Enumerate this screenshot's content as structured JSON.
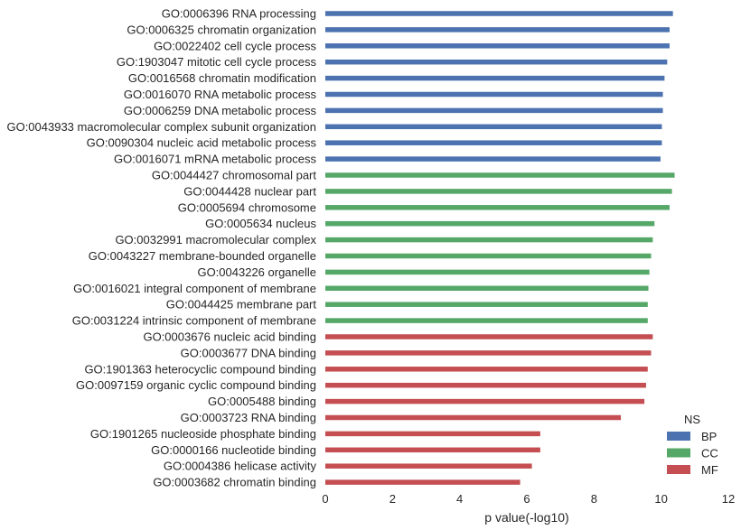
{
  "chart_data": {
    "type": "bar",
    "orientation": "horizontal",
    "xlabel": "p value(-log10)",
    "ylabel": "",
    "xlim": [
      0,
      12
    ],
    "xticks": [
      0,
      2,
      4,
      6,
      8,
      10,
      12
    ],
    "grid": false,
    "legend": {
      "title": "NS",
      "placement": "bottom-right",
      "entries": [
        {
          "name": "BP",
          "color": "#4c72b0"
        },
        {
          "name": "CC",
          "color": "#55a868"
        },
        {
          "name": "MF",
          "color": "#c44e52"
        }
      ]
    },
    "bars": [
      {
        "label": "GO:0006396 RNA processing",
        "value": 10.35,
        "ns": "BP"
      },
      {
        "label": "GO:0006325 chromatin organization",
        "value": 10.25,
        "ns": "BP"
      },
      {
        "label": "GO:0022402 cell cycle process",
        "value": 10.25,
        "ns": "BP"
      },
      {
        "label": "GO:1903047 mitotic cell cycle process",
        "value": 10.18,
        "ns": "BP"
      },
      {
        "label": "GO:0016568 chromatin modification",
        "value": 10.1,
        "ns": "BP"
      },
      {
        "label": "GO:0016070 RNA metabolic process",
        "value": 10.05,
        "ns": "BP"
      },
      {
        "label": "GO:0006259 DNA metabolic process",
        "value": 10.05,
        "ns": "BP"
      },
      {
        "label": "GO:0043933 macromolecular complex subunit organization",
        "value": 10.02,
        "ns": "BP"
      },
      {
        "label": "GO:0090304 nucleic acid metabolic process",
        "value": 10.02,
        "ns": "BP"
      },
      {
        "label": "GO:0016071 mRNA metabolic process",
        "value": 9.98,
        "ns": "BP"
      },
      {
        "label": "GO:0044427 chromosomal part",
        "value": 10.4,
        "ns": "CC"
      },
      {
        "label": "GO:0044428 nuclear part",
        "value": 10.32,
        "ns": "CC"
      },
      {
        "label": "GO:0005694 chromosome",
        "value": 10.25,
        "ns": "CC"
      },
      {
        "label": "GO:0005634 nucleus",
        "value": 9.8,
        "ns": "CC"
      },
      {
        "label": "GO:0032991 macromolecular complex",
        "value": 9.75,
        "ns": "CC"
      },
      {
        "label": "GO:0043227 membrane-bounded organelle",
        "value": 9.7,
        "ns": "CC"
      },
      {
        "label": "GO:0043226 organelle",
        "value": 9.65,
        "ns": "CC"
      },
      {
        "label": "GO:0016021 integral component of membrane",
        "value": 9.62,
        "ns": "CC"
      },
      {
        "label": "GO:0044425 membrane part",
        "value": 9.6,
        "ns": "CC"
      },
      {
        "label": "GO:0031224 intrinsic component of membrane",
        "value": 9.6,
        "ns": "CC"
      },
      {
        "label": "GO:0003676 nucleic acid binding",
        "value": 9.75,
        "ns": "MF"
      },
      {
        "label": "GO:0003677 DNA binding",
        "value": 9.7,
        "ns": "MF"
      },
      {
        "label": "GO:1901363 heterocyclic compound binding",
        "value": 9.6,
        "ns": "MF"
      },
      {
        "label": "GO:0097159 organic cyclic compound binding",
        "value": 9.55,
        "ns": "MF"
      },
      {
        "label": "GO:0005488 binding",
        "value": 9.5,
        "ns": "MF"
      },
      {
        "label": "GO:0003723 RNA binding",
        "value": 8.8,
        "ns": "MF"
      },
      {
        "label": "GO:1901265 nucleoside phosphate binding",
        "value": 6.4,
        "ns": "MF"
      },
      {
        "label": "GO:0000166 nucleotide binding",
        "value": 6.4,
        "ns": "MF"
      },
      {
        "label": "GO:0004386 helicase activity",
        "value": 6.15,
        "ns": "MF"
      },
      {
        "label": "GO:0003682 chromatin binding",
        "value": 5.8,
        "ns": "MF"
      }
    ]
  }
}
